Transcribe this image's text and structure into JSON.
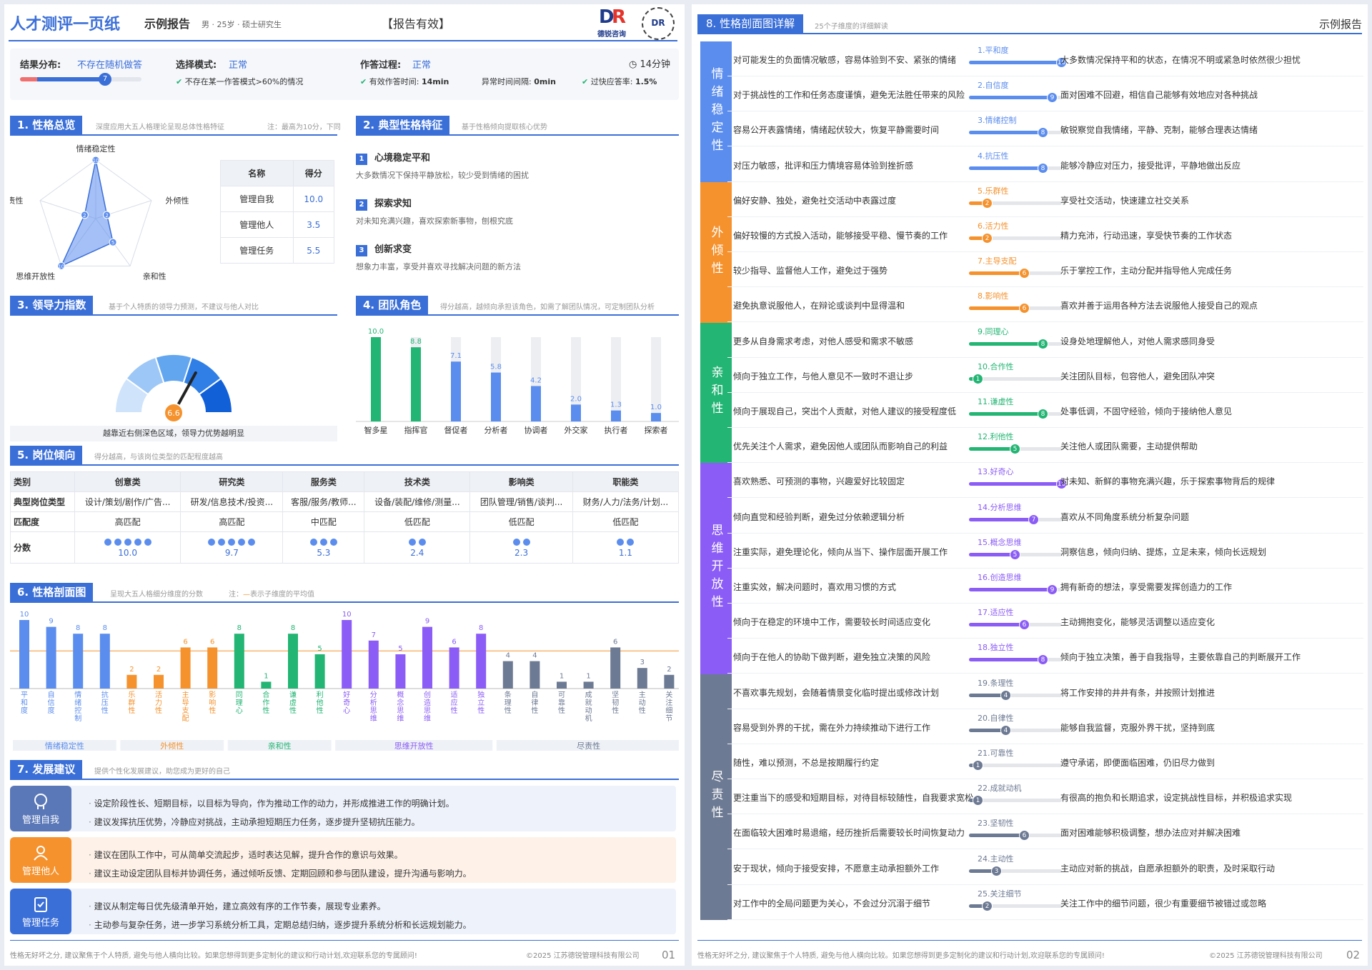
{
  "header": {
    "title": "人才测评一页纸",
    "report_type": "示例报告",
    "meta": "男 · 25岁 · 硕士研究生",
    "validity": "【报告有效】",
    "logo_text": "德锐咨询",
    "qr_mark": "DR"
  },
  "validity": {
    "label1": "结果分布:",
    "val1": "不存在随机做答",
    "knob": "7",
    "label2": "选择模式:",
    "val2": "正常",
    "check2": "不存在某一作答模式>60%的情况",
    "label3": "作答过程:",
    "val3": "正常",
    "time": "14分钟",
    "check3a_label": "有效作答时间:",
    "check3a_val": "14min",
    "check3b_label": "异常时间间隔:",
    "check3b_val": "0min",
    "check3c_label": "过快应答率:",
    "check3c_val": "1.5%",
    "bar_fraction": 0.7
  },
  "s1": {
    "tag": "1. 性格总览",
    "note": "深度应用大五人格理论呈现总体性格特征",
    "note2": "注：最高为10分，下同",
    "radar": [
      {
        "label": "情绪稳定性",
        "v": 10
      },
      {
        "label": "外倾性",
        "v": 2
      },
      {
        "label": "亲和性",
        "v": 5
      },
      {
        "label": "思维开放性",
        "v": 10
      },
      {
        "label": "尽责性",
        "v": 2
      }
    ],
    "table_h": [
      "名称",
      "得分"
    ],
    "table": [
      [
        "管理自我",
        "10.0"
      ],
      [
        "管理他人",
        "3.5"
      ],
      [
        "管理任务",
        "5.5"
      ]
    ]
  },
  "s2": {
    "tag": "2. 典型性格特征",
    "note": "基于性格倾向提取核心优势",
    "items": [
      {
        "n": "1",
        "t": "心境稳定平和",
        "d": "大多数情况下保持平静放松，较少受到情绪的困扰"
      },
      {
        "n": "2",
        "t": "探索求知",
        "d": "对未知充满兴趣，喜欢探索新事物，刨根究底"
      },
      {
        "n": "3",
        "t": "创新求变",
        "d": "想象力丰富，享受并喜欢寻找解决问题的新方法"
      }
    ]
  },
  "s3": {
    "tag": "3. 领导力指数",
    "note": "基于个人特质的领导力预测，不建议与他人对比",
    "value": 6.6,
    "caption": "越靠近右侧深色区域，领导力优势越明显"
  },
  "s4": {
    "tag": "4. 团队角色",
    "note": "得分越高，越倾向承担该角色，如需了解团队情况，可定制团队分析"
  },
  "s5": {
    "tag": "5. 岗位倾向",
    "note": "得分越高，与该岗位类型的匹配程度越高",
    "cols": [
      "类别",
      "创意类",
      "研究类",
      "服务类",
      "技术类",
      "影响类",
      "职能类"
    ],
    "row_types": "典型岗位类型",
    "types": [
      "设计/策划/剧作/广告...",
      "研发/信息技术/投资...",
      "客服/服务/教师...",
      "设备/装配/维修/测量...",
      "团队管理/销售/谈判...",
      "财务/人力/法务/计划..."
    ],
    "row_match": "匹配度",
    "match": [
      "高匹配",
      "高匹配",
      "中匹配",
      "低匹配",
      "低匹配",
      "低匹配"
    ],
    "row_score": "分数",
    "scores": [
      "10.0",
      "9.7",
      "5.3",
      "2.4",
      "2.3",
      "1.1"
    ],
    "dots": [
      5,
      5,
      3,
      2,
      2,
      2
    ]
  },
  "s6": {
    "tag": "6. 性格剖面图",
    "note": "呈现大五人格细分维度的分数",
    "note2": "注：",
    "note3": "表示子维度的平均值",
    "groups": [
      {
        "name": "情绪稳定性",
        "color": "#5b8dee"
      },
      {
        "name": "外倾性",
        "color": "#f5922d"
      },
      {
        "name": "亲和性",
        "color": "#22b573"
      },
      {
        "name": "思维开放性",
        "color": "#8b5cf6"
      },
      {
        "name": "尽责性",
        "color": "#6d7a93"
      }
    ]
  },
  "s7": {
    "tag": "7. 发展建议",
    "note": "提供个性化发展建议，助您成为更好的自己",
    "items": [
      {
        "label": "管理自我",
        "lines": [
          "设定阶段性长、短期目标，以目标为导向，作为推动工作的动力，并形成推进工作的明确计划。",
          "建议发挥抗压优势，冷静应对挑战，主动承担短期压力任务，逐步提升坚韧抗压能力。"
        ]
      },
      {
        "label": "管理他人",
        "lines": [
          "建议在团队工作中，可从简单交流起步，适时表达见解，提升合作的意识与效果。",
          "建议主动设定团队目标并协调任务，通过倾听反馈、定期回顾和参与团队建设，提升沟通与影响力。"
        ]
      },
      {
        "label": "管理任务",
        "lines": [
          "建议从制定每日优先级清单开始，建立高效有序的工作节奏，展现专业素养。",
          "主动参与复杂任务，进一步学习系统分析工具，定期总结归纳，逐步提升系统分析和长远规划能力。"
        ]
      }
    ]
  },
  "footer1": {
    "text": "性格无好坏之分, 建议聚焦于个人特质, 避免与他人横向比较。如果您想得到更多定制化的建议和行动计划,欢迎联系您的专属顾问!",
    "copy": "©2025 江苏德锐管理科技有限公司",
    "page": "01"
  },
  "p2": {
    "tag": "8. 性格剖面图详解",
    "note": "25个子维度的详细解读",
    "right": "示例报告",
    "dims": [
      {
        "name": "情绪稳定性",
        "color": "#5b8dee"
      },
      {
        "name": "外倾性",
        "color": "#f5922d"
      },
      {
        "name": "亲和性",
        "color": "#22b573"
      },
      {
        "name": "思维开放性",
        "color": "#8b5cf6"
      },
      {
        "name": "尽责性",
        "color": "#6d7a93"
      }
    ],
    "footer": "性格无好坏之分, 建议聚焦于个人特质, 避免与他人横向比较。如果您想得到更多定制化的建议和行动计划,欢迎联系您的专属顾问!",
    "copy": "©2025 江苏德锐管理科技有限公司",
    "page": "02"
  },
  "traits": [
    {
      "name": "1.平和度",
      "short": "平和度",
      "v": 10,
      "g": 0,
      "l": "对可能发生的负面情况敏感，容易体验到不安、紧张的情绪",
      "r": "大多数情况保持平和的状态，在情况不明或紧急时依然很少担忧"
    },
    {
      "name": "2.自信度",
      "short": "自信度",
      "v": 9,
      "g": 0,
      "l": "对于挑战性的工作和任务态度谨慎，避免无法胜任带来的风险",
      "r": "面对困难不回避，相信自己能够有效地应对各种挑战"
    },
    {
      "name": "3.情绪控制",
      "short": "情绪控制",
      "v": 8,
      "g": 0,
      "l": "容易公开表露情绪，情绪起伏较大，恢复平静需要时间",
      "r": "敏锐察觉自我情绪，平静、克制，能够合理表达情绪"
    },
    {
      "name": "4.抗压性",
      "short": "抗压性",
      "v": 8,
      "g": 0,
      "l": "对压力敏感，批评和压力情境容易体验到挫折感",
      "r": "能够冷静应对压力，接受批评，平静地做出反应"
    },
    {
      "name": "5.乐群性",
      "short": "乐群性",
      "v": 2,
      "g": 1,
      "l": "偏好安静、独处，避免社交活动中表露过度",
      "r": "享受社交活动，快速建立社交关系"
    },
    {
      "name": "6.活力性",
      "short": "活力性",
      "v": 2,
      "g": 1,
      "l": "偏好较慢的方式投入活动，能够接受平稳、慢节奏的工作",
      "r": "精力充沛，行动迅速，享受快节奏的工作状态"
    },
    {
      "name": "7.主导支配",
      "short": "主导支配",
      "v": 6,
      "g": 1,
      "l": "较少指导、监督他人工作，避免过于强势",
      "r": "乐于掌控工作，主动分配并指导他人完成任务"
    },
    {
      "name": "8.影响性",
      "short": "影响性",
      "v": 6,
      "g": 1,
      "l": "避免执意说服他人，在辩论或谈判中显得温和",
      "r": "喜欢并善于运用各种方法去说服他人接受自己的观点"
    },
    {
      "name": "9.同理心",
      "short": "同理心",
      "v": 8,
      "g": 2,
      "l": "更多从自身需求考虑，对他人感受和需求不敏感",
      "r": "设身处地理解他人，对他人需求感同身受"
    },
    {
      "name": "10.合作性",
      "short": "合作性",
      "v": 1,
      "g": 2,
      "l": "倾向于独立工作，与他人意见不一致时不退让步",
      "r": "关注团队目标，包容他人，避免团队冲突"
    },
    {
      "name": "11.谦虚性",
      "short": "谦虚性",
      "v": 8,
      "g": 2,
      "l": "倾向于展现自己，突出个人贡献，对他人建议的接受程度低",
      "r": "处事低调，不固守经验，倾向于接纳他人意见"
    },
    {
      "name": "12.利他性",
      "short": "利他性",
      "v": 5,
      "g": 2,
      "l": "优先关注个人需求，避免因他人或团队而影响自己的利益",
      "r": "关注他人或团队需要，主动提供帮助"
    },
    {
      "name": "13.好奇心",
      "short": "好奇心",
      "v": 10,
      "g": 3,
      "l": "喜欢熟悉、可预测的事物，兴趣爱好比较固定",
      "r": "对未知、新鲜的事物充满兴趣，乐于探索事物背后的规律"
    },
    {
      "name": "14.分析思维",
      "short": "分析思维",
      "v": 7,
      "g": 3,
      "l": "倾向直觉和经验判断，避免过分依赖逻辑分析",
      "r": "喜欢从不同角度系统分析复杂问题"
    },
    {
      "name": "15.概念思维",
      "short": "概念思维",
      "v": 5,
      "g": 3,
      "l": "注重实际，避免理论化，倾向从当下、操作层面开展工作",
      "r": "洞察信息，倾向归纳、提炼，立足未来，倾向长远规划"
    },
    {
      "name": "16.创造思维",
      "short": "创造思维",
      "v": 9,
      "g": 3,
      "l": "注重实效，解决问题时，喜欢用习惯的方式",
      "r": "拥有新奇的想法，享受需要发挥创造力的工作"
    },
    {
      "name": "17.适应性",
      "short": "适应性",
      "v": 6,
      "g": 3,
      "l": "倾向于在稳定的环境中工作，需要较长时间适应变化",
      "r": "主动拥抱变化，能够灵活调整以适应变化"
    },
    {
      "name": "18.独立性",
      "short": "独立性",
      "v": 8,
      "g": 3,
      "l": "倾向于在他人的协助下做判断，避免独立决策的风险",
      "r": "倾向于独立决策，善于自我指导，主要依靠自己的判断展开工作"
    },
    {
      "name": "19.条理性",
      "short": "条理性",
      "v": 4,
      "g": 4,
      "l": "不喜欢事先规划，会随着情景变化临时提出或修改计划",
      "r": "将工作安排的井井有条，并按照计划推进"
    },
    {
      "name": "20.自律性",
      "short": "自律性",
      "v": 4,
      "g": 4,
      "l": "容易受到外界的干扰，需在外力持续推动下进行工作",
      "r": "能够自我监督，克服外界干扰，坚持到底"
    },
    {
      "name": "21.可靠性",
      "short": "可靠性",
      "v": 1,
      "g": 4,
      "l": "随性，难以预测，不总是按期履行约定",
      "r": "遵守承诺，即便面临困难，仍旧尽力做到"
    },
    {
      "name": "22.成就动机",
      "short": "成就动机",
      "v": 1,
      "g": 4,
      "l": "更注重当下的感受和短期目标，对待目标较随性，自我要求宽松",
      "r": "有很高的抱负和长期追求，设定挑战性目标，并积极追求实现"
    },
    {
      "name": "23.坚韧性",
      "short": "坚韧性",
      "v": 6,
      "g": 4,
      "l": "在面临较大困难时易退缩，经历挫折后需要较长时间恢复动力",
      "r": "面对困难能够积极调整，想办法应对并解决困难"
    },
    {
      "name": "24.主动性",
      "short": "主动性",
      "v": 3,
      "g": 4,
      "l": "安于现状，倾向于接受安排，不愿意主动承担额外工作",
      "r": "主动应对新的挑战，自愿承担额外的职责，及时采取行动"
    },
    {
      "name": "25.关注细节",
      "short": "关注细节",
      "v": 2,
      "g": 4,
      "l": "对工作中的全局问题更为关心，不会过分沉溺于细节",
      "r": "关注工作中的细节问题，很少有重要细节被错过或忽略"
    }
  ],
  "chart_data": [
    {
      "type": "radar",
      "categories": [
        "情绪稳定性",
        "外倾性",
        "亲和性",
        "思维开放性",
        "尽责性"
      ],
      "values": [
        10,
        2,
        5,
        10,
        2
      ],
      "range": [
        0,
        10
      ]
    },
    {
      "type": "gauge",
      "value": 6.6,
      "range": [
        0,
        10
      ],
      "caption": "越靠近右侧深色区域，领导力优势越明显"
    },
    {
      "type": "bar",
      "categories": [
        "智多星",
        "指挥官",
        "督促者",
        "分析者",
        "协调者",
        "外交家",
        "执行者",
        "探索者"
      ],
      "values": [
        10.0,
        8.8,
        7.1,
        5.8,
        4.2,
        2.0,
        1.3,
        1.0
      ],
      "colors": [
        "#22b573",
        "#22b573",
        "#5b8dee",
        "#5b8dee",
        "#5b8dee",
        "#5b8dee",
        "#5b8dee",
        "#5b8dee"
      ],
      "ylim": [
        0,
        10
      ]
    },
    {
      "type": "bar",
      "categories": [
        "平和度",
        "自信度",
        "情绪控制",
        "抗压性",
        "乐群性",
        "活力性",
        "主导支配",
        "影响性",
        "同理心",
        "合作性",
        "谦虚性",
        "利他性",
        "好奇心",
        "分析思维",
        "概念思维",
        "创造思维",
        "适应性",
        "独立性",
        "条理性",
        "自律性",
        "可靠性",
        "成就动机",
        "坚韧性",
        "主动性",
        "关注细节"
      ],
      "values": [
        10,
        9,
        8,
        8,
        2,
        2,
        6,
        6,
        8,
        1,
        8,
        5,
        10,
        7,
        5,
        9,
        6,
        8,
        4,
        4,
        1,
        1,
        6,
        3,
        2
      ],
      "ylim": [
        0,
        10
      ],
      "average_line": true
    }
  ]
}
